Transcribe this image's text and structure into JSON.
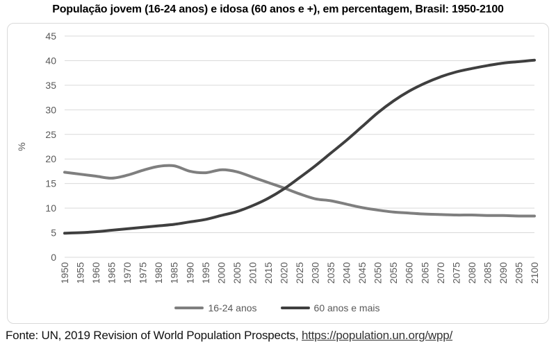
{
  "title": "População jovem (16-24 anos) e idosa (60 anos e +), em percentagem, Brasil: 1950-2100",
  "footer": {
    "prefix": "Fonte: UN, 2019 Revision of World Population Prospects, ",
    "link_text": "https://population.un.org/wpp/"
  },
  "chart_data": {
    "type": "line",
    "title": "",
    "xlabel": "",
    "ylabel": "%",
    "ylim": [
      0,
      45
    ],
    "ytick_step": 5,
    "grid": true,
    "legend_position": "bottom",
    "x": [
      1950,
      1955,
      1960,
      1965,
      1970,
      1975,
      1980,
      1985,
      1990,
      1995,
      2000,
      2005,
      2010,
      2015,
      2020,
      2025,
      2030,
      2035,
      2040,
      2045,
      2050,
      2055,
      2060,
      2065,
      2070,
      2075,
      2080,
      2085,
      2090,
      2095,
      2100
    ],
    "series": [
      {
        "name": "16-24 anos",
        "color": "#7f7f7f",
        "values": [
          17.3,
          16.9,
          16.5,
          16.1,
          16.7,
          17.7,
          18.5,
          18.6,
          17.5,
          17.2,
          17.8,
          17.4,
          16.3,
          15.2,
          14.1,
          12.9,
          11.9,
          11.5,
          10.8,
          10.1,
          9.6,
          9.2,
          9.0,
          8.8,
          8.7,
          8.6,
          8.6,
          8.5,
          8.5,
          8.4,
          8.4
        ]
      },
      {
        "name": "60 anos e mais",
        "color": "#3f3f3f",
        "values": [
          4.9,
          5.0,
          5.2,
          5.5,
          5.8,
          6.1,
          6.4,
          6.7,
          7.2,
          7.7,
          8.5,
          9.3,
          10.5,
          12.0,
          13.9,
          16.2,
          18.6,
          21.2,
          23.8,
          26.6,
          29.4,
          31.8,
          33.8,
          35.4,
          36.7,
          37.7,
          38.4,
          39.0,
          39.5,
          39.8,
          40.1
        ]
      }
    ],
    "colors": {
      "gridline": "#d9d9d9",
      "axis_text": "#595959",
      "border": "#d9d9d9"
    }
  }
}
